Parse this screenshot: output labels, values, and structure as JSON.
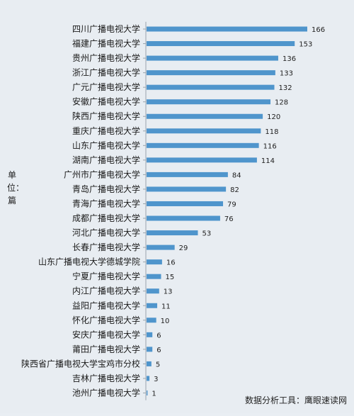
{
  "chart_data": {
    "type": "bar",
    "orientation": "horizontal",
    "ylabel": "单位：篇",
    "categories": [
      "四川广播电视大学",
      "福建广播电视大学",
      "贵州广播电视大学",
      "浙江广播电视大学",
      "广元广播电视大学",
      "安徽广播电视大学",
      "陕西广播电视大学",
      "重庆广播电视大学",
      "山东广播电视大学",
      "湖南广播电视大学",
      "广州市广播电视大学",
      "青岛广播电视大学",
      "青海广播电视大学",
      "成都广播电视大学",
      "河北广播电视大学",
      "长春广播电视大学",
      "山东广播电视大学德城学院",
      "宁夏广播电视大学",
      "内江广播电视大学",
      "益阳广播电视大学",
      "怀化广播电视大学",
      "安庆广播电视大学",
      "莆田广播电视大学",
      "陕西省广播电视大学宝鸡市分校",
      "吉林广播电视大学",
      "池州广播电视大学"
    ],
    "values": [
      166,
      153,
      136,
      133,
      132,
      128,
      120,
      118,
      116,
      114,
      84,
      82,
      79,
      76,
      53,
      29,
      16,
      15,
      13,
      11,
      10,
      6,
      6,
      5,
      3,
      1
    ],
    "xlim": [
      0,
      166
    ],
    "bar_color": "#4f95cc",
    "grid": false,
    "legend": "none"
  },
  "footer_text": "数据分析工具：鹰眼速读网"
}
